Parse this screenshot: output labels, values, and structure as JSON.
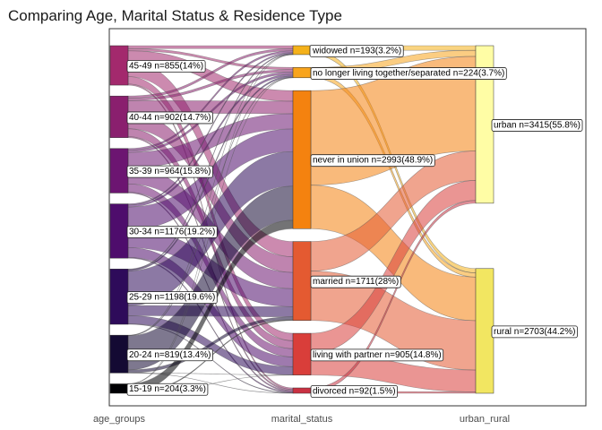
{
  "chart_data": {
    "type": "sankey",
    "title": "Comparing Age, Marital Status & Residence Type",
    "axes": [
      "age_groups",
      "marital_status",
      "urban_rural"
    ],
    "nodes": [
      {
        "axis": 0,
        "name": "45-49",
        "label": "45-49 n=855(14%)",
        "n": 855,
        "color": "#A3296D"
      },
      {
        "axis": 0,
        "name": "40-44",
        "label": "40-44 n=902(14.7%)",
        "n": 902,
        "color": "#8A1F6E"
      },
      {
        "axis": 0,
        "name": "35-39",
        "label": "35-39 n=964(15.8%)",
        "n": 964,
        "color": "#6C1571"
      },
      {
        "axis": 0,
        "name": "30-34",
        "label": "30-34 n=1176(19.2%)",
        "n": 1176,
        "color": "#4E0D6C"
      },
      {
        "axis": 0,
        "name": "25-29",
        "label": "25-29 n=1198(19.6%)",
        "n": 1198,
        "color": "#2E0B5A"
      },
      {
        "axis": 0,
        "name": "20-24",
        "label": "20-24 n=819(13.4%)",
        "n": 819,
        "color": "#140A33"
      },
      {
        "axis": 0,
        "name": "15-19",
        "label": "15-19 n=204(3.3%)",
        "n": 204,
        "color": "#000004"
      },
      {
        "axis": 1,
        "name": "widowed",
        "label": "widowed n=193(3.2%)",
        "n": 193,
        "color": "#F4B11A"
      },
      {
        "axis": 1,
        "name": "no longer living together/separated",
        "label": "no longer living together/separated n=224(3.7%)",
        "n": 224,
        "color": "#F8A41C"
      },
      {
        "axis": 1,
        "name": "never in union",
        "label": "never in union n=2993(48.9%)",
        "n": 2993,
        "color": "#F4820F"
      },
      {
        "axis": 1,
        "name": "married",
        "label": "married n=1711(28%)",
        "n": 1711,
        "color": "#E45A31"
      },
      {
        "axis": 1,
        "name": "living with partner",
        "label": "living with partner n=905(14.8%)",
        "n": 905,
        "color": "#D93E3A"
      },
      {
        "axis": 1,
        "name": "divorced",
        "label": "divorced n=92(1.5%)",
        "n": 92,
        "color": "#C93142"
      },
      {
        "axis": 2,
        "name": "urban",
        "label": "urban n=3415(55.8%)",
        "n": 3415,
        "color": "#FFFDA5"
      },
      {
        "axis": 2,
        "name": "rural",
        "label": "rural n=2703(44.2%)",
        "n": 2703,
        "color": "#F2E661"
      }
    ],
    "flows_age_to_marital": [
      {
        "from": "45-49",
        "to": "widowed",
        "value": 62
      },
      {
        "from": "45-49",
        "to": "no longer living together/separated",
        "value": 48
      },
      {
        "from": "45-49",
        "to": "never in union",
        "value": 230
      },
      {
        "from": "45-49",
        "to": "married",
        "value": 330
      },
      {
        "from": "45-49",
        "to": "living with partner",
        "value": 160
      },
      {
        "from": "45-49",
        "to": "divorced",
        "value": 25
      },
      {
        "from": "40-44",
        "to": "widowed",
        "value": 48
      },
      {
        "from": "40-44",
        "to": "no longer living together/separated",
        "value": 50
      },
      {
        "from": "40-44",
        "to": "never in union",
        "value": 270
      },
      {
        "from": "40-44",
        "to": "married",
        "value": 340
      },
      {
        "from": "40-44",
        "to": "living with partner",
        "value": 172
      },
      {
        "from": "40-44",
        "to": "divorced",
        "value": 22
      },
      {
        "from": "35-39",
        "to": "widowed",
        "value": 38
      },
      {
        "from": "35-39",
        "to": "no longer living together/separated",
        "value": 46
      },
      {
        "from": "35-39",
        "to": "never in union",
        "value": 330
      },
      {
        "from": "35-39",
        "to": "married",
        "value": 352
      },
      {
        "from": "35-39",
        "to": "living with partner",
        "value": 180
      },
      {
        "from": "35-39",
        "to": "divorced",
        "value": 18
      },
      {
        "from": "30-34",
        "to": "widowed",
        "value": 25
      },
      {
        "from": "30-34",
        "to": "no longer living together/separated",
        "value": 42
      },
      {
        "from": "30-34",
        "to": "never in union",
        "value": 490
      },
      {
        "from": "30-34",
        "to": "married",
        "value": 390
      },
      {
        "from": "30-34",
        "to": "living with partner",
        "value": 212
      },
      {
        "from": "30-34",
        "to": "divorced",
        "value": 17
      },
      {
        "from": "25-29",
        "to": "widowed",
        "value": 14
      },
      {
        "from": "25-29",
        "to": "no longer living together/separated",
        "value": 28
      },
      {
        "from": "25-29",
        "to": "never in union",
        "value": 750
      },
      {
        "from": "25-29",
        "to": "married",
        "value": 220
      },
      {
        "from": "25-29",
        "to": "living with partner",
        "value": 178
      },
      {
        "from": "25-29",
        "to": "divorced",
        "value": 8
      },
      {
        "from": "20-24",
        "to": "widowed",
        "value": 5
      },
      {
        "from": "20-24",
        "to": "no longer living together/separated",
        "value": 8
      },
      {
        "from": "20-24",
        "to": "never in union",
        "value": 740
      },
      {
        "from": "20-24",
        "to": "married",
        "value": 63
      },
      {
        "from": "20-24",
        "to": "living with partner",
        "value": 1
      },
      {
        "from": "20-24",
        "to": "divorced",
        "value": 2
      },
      {
        "from": "15-19",
        "to": "widowed",
        "value": 1
      },
      {
        "from": "15-19",
        "to": "no longer living together/separated",
        "value": 2
      },
      {
        "from": "15-19",
        "to": "never in union",
        "value": 183
      },
      {
        "from": "15-19",
        "to": "married",
        "value": 16
      },
      {
        "from": "15-19",
        "to": "living with partner",
        "value": 2
      },
      {
        "from": "15-19",
        "to": "divorced",
        "value": 0
      }
    ],
    "flows_marital_to_residence": [
      {
        "from": "widowed",
        "to": "urban",
        "value": 100
      },
      {
        "from": "widowed",
        "to": "rural",
        "value": 93
      },
      {
        "from": "no longer living together/separated",
        "to": "urban",
        "value": 132
      },
      {
        "from": "no longer living together/separated",
        "to": "rural",
        "value": 92
      },
      {
        "from": "never in union",
        "to": "urban",
        "value": 2050
      },
      {
        "from": "never in union",
        "to": "rural",
        "value": 943
      },
      {
        "from": "married",
        "to": "urban",
        "value": 640
      },
      {
        "from": "married",
        "to": "rural",
        "value": 1071
      },
      {
        "from": "living with partner",
        "to": "urban",
        "value": 433
      },
      {
        "from": "living with partner",
        "to": "rural",
        "value": 472
      },
      {
        "from": "divorced",
        "to": "urban",
        "value": 60
      },
      {
        "from": "divorced",
        "to": "rural",
        "value": 32
      }
    ]
  }
}
